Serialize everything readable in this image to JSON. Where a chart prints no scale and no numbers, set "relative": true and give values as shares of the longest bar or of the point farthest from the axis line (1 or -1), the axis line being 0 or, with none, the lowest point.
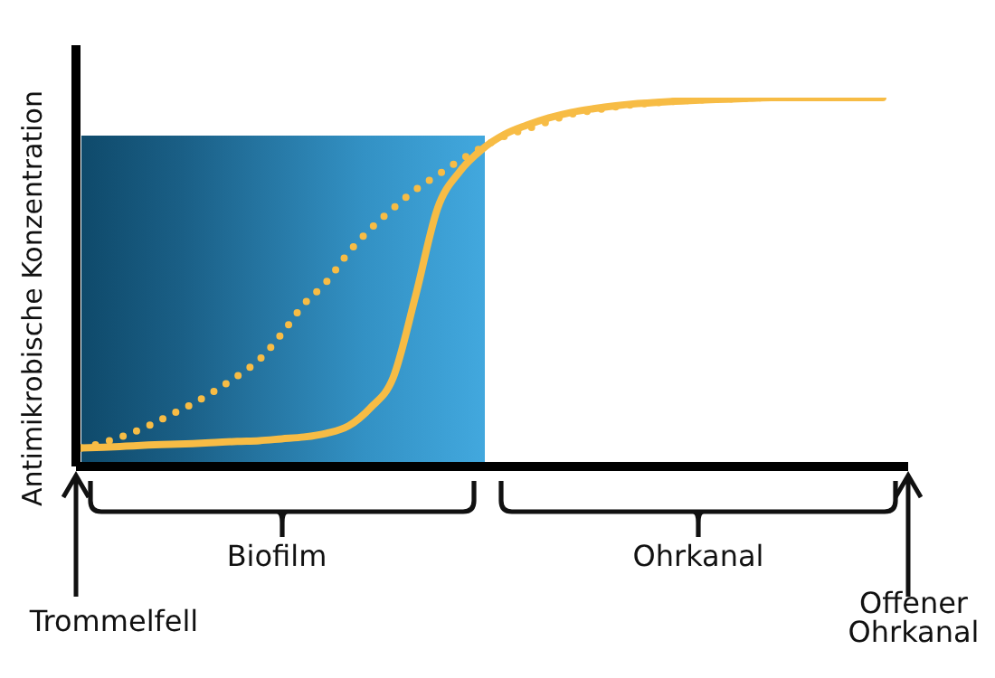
{
  "chart_data": {
    "type": "line",
    "relative": true,
    "ylabel": "Antimikrobische Konzentration",
    "categories": [
      null,
      null,
      null,
      null,
      null,
      null,
      null,
      null,
      null,
      null,
      null,
      null,
      null,
      null,
      null,
      null,
      null,
      null,
      null,
      null,
      null,
      null,
      null,
      null,
      null,
      null,
      null,
      null,
      null,
      null,
      null,
      null,
      null,
      null,
      null,
      null,
      null
    ],
    "series": [
      {
        "color": "#f7bc45",
        "line_style": "solid",
        "values": [
          0.05,
          0.052,
          0.055,
          0.058,
          0.06,
          0.062,
          0.065,
          0.068,
          0.07,
          0.075,
          0.08,
          0.09,
          0.11,
          0.16,
          0.24,
          0.46,
          0.7,
          0.8,
          0.86,
          0.9,
          0.925,
          0.945,
          0.96,
          0.97,
          0.978,
          0.984,
          0.988,
          0.991,
          0.994,
          0.996,
          0.998,
          1,
          1,
          1,
          1,
          1,
          1
        ]
      },
      {
        "color": "#f7bc45",
        "line_style": "dotted",
        "values": [
          0.05,
          0.065,
          0.085,
          0.11,
          0.14,
          0.17,
          0.205,
          0.245,
          0.29,
          0.36,
          0.44,
          0.5,
          0.58,
          0.645,
          0.7,
          0.75,
          0.79,
          0.83,
          0.865,
          0.895,
          0.915,
          0.935,
          0.955,
          0.965,
          0.975,
          0.982,
          0.987,
          0.991,
          0.994,
          0.996,
          0.998,
          1,
          1,
          1,
          1,
          1,
          1
        ]
      }
    ],
    "grid": false,
    "legend": false,
    "marker": "none",
    "annotations": [
      "Biofilm",
      "Ohrkanal",
      "Trommelfell",
      "Offener Ohrkanal"
    ]
  }
}
